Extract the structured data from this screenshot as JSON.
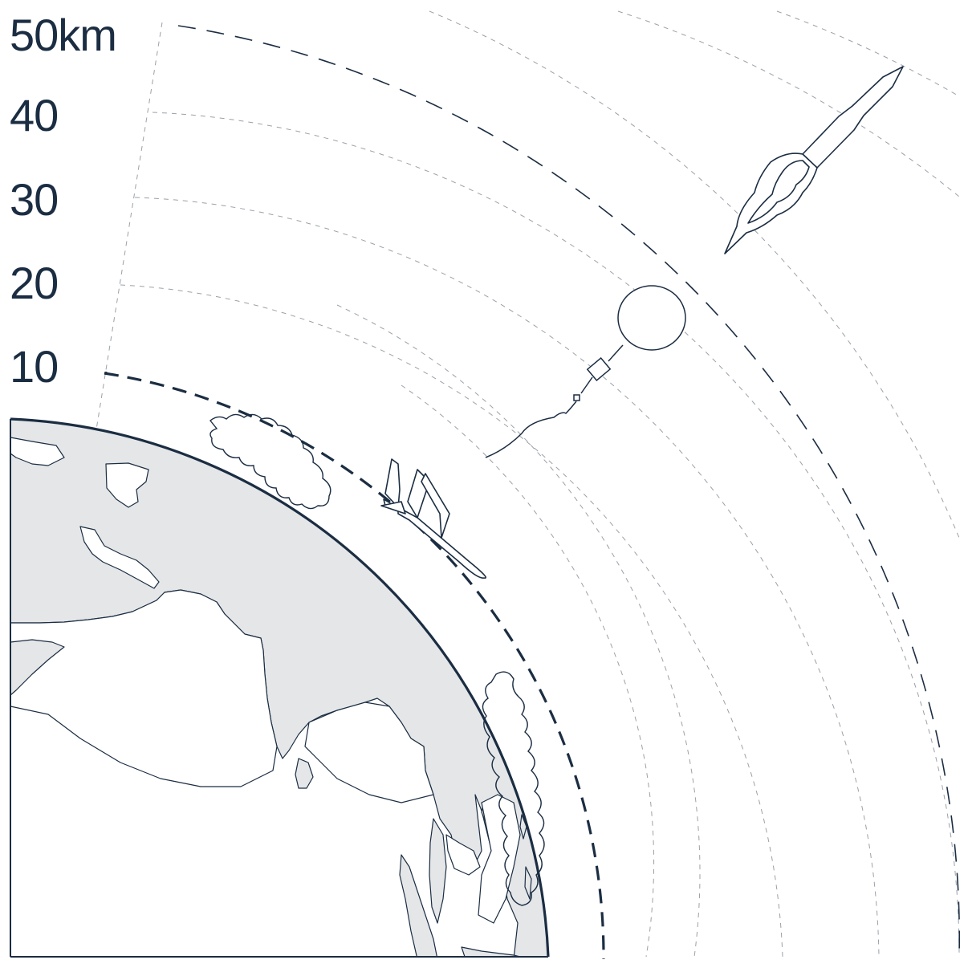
{
  "altitude_labels": [
    "50km",
    "40",
    "30",
    "20",
    "10"
  ],
  "colors": {
    "ink": "#1b2d42",
    "land": "#e4e6e8",
    "ocean": "#ffffff",
    "grid": "#9aa1a8"
  },
  "icons": [
    "earth-globe",
    "cloud",
    "airplane-icon",
    "weather-balloon-icon",
    "rocket-icon"
  ]
}
